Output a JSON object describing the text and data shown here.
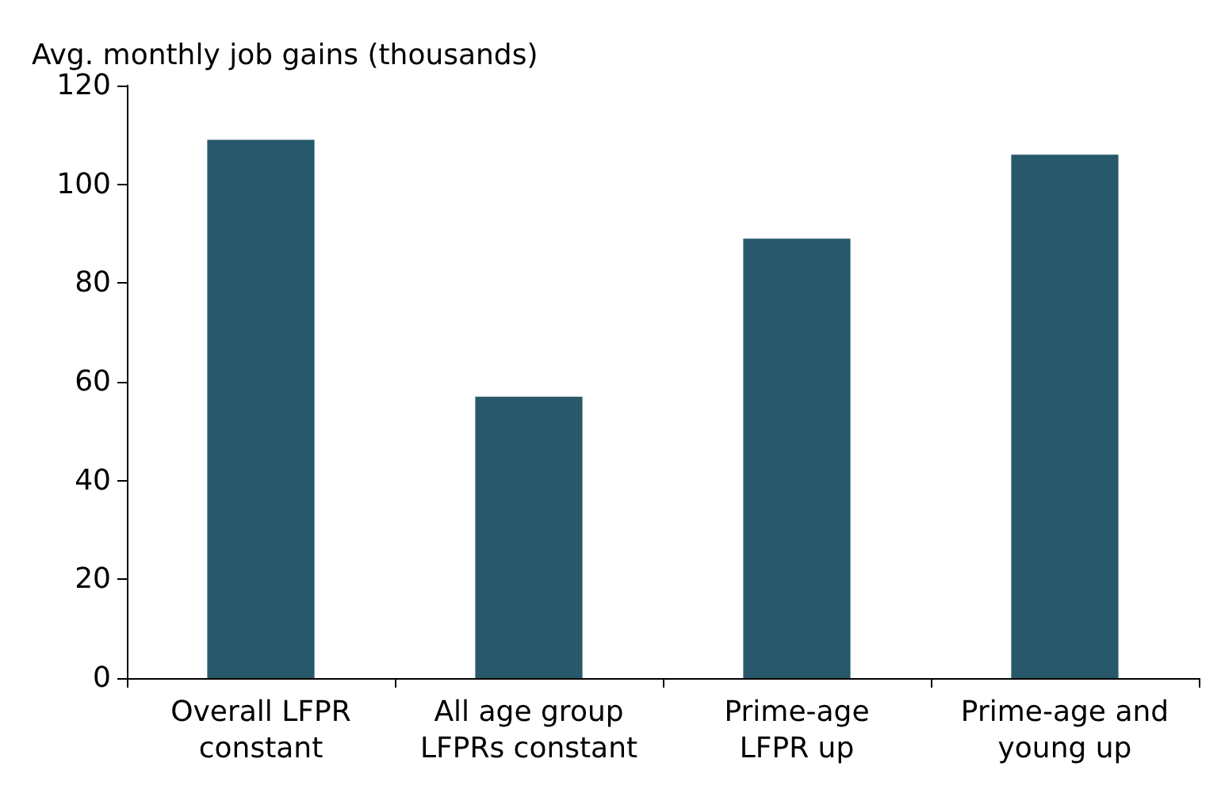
{
  "chart_data": {
    "type": "bar",
    "ylabel": "Avg. monthly job gains (thousands)",
    "categories": [
      "Overall LFPR\nconstant",
      "All age group\nLFPRs constant",
      "Prime-age\nLFPR up",
      "Prime-age and\nyoung up"
    ],
    "values": [
      109,
      57,
      89,
      106
    ],
    "color": "#27596a",
    "ylim": [
      0,
      120
    ],
    "yticks": [
      0,
      20,
      40,
      60,
      80,
      100,
      120
    ],
    "grid": false
  }
}
